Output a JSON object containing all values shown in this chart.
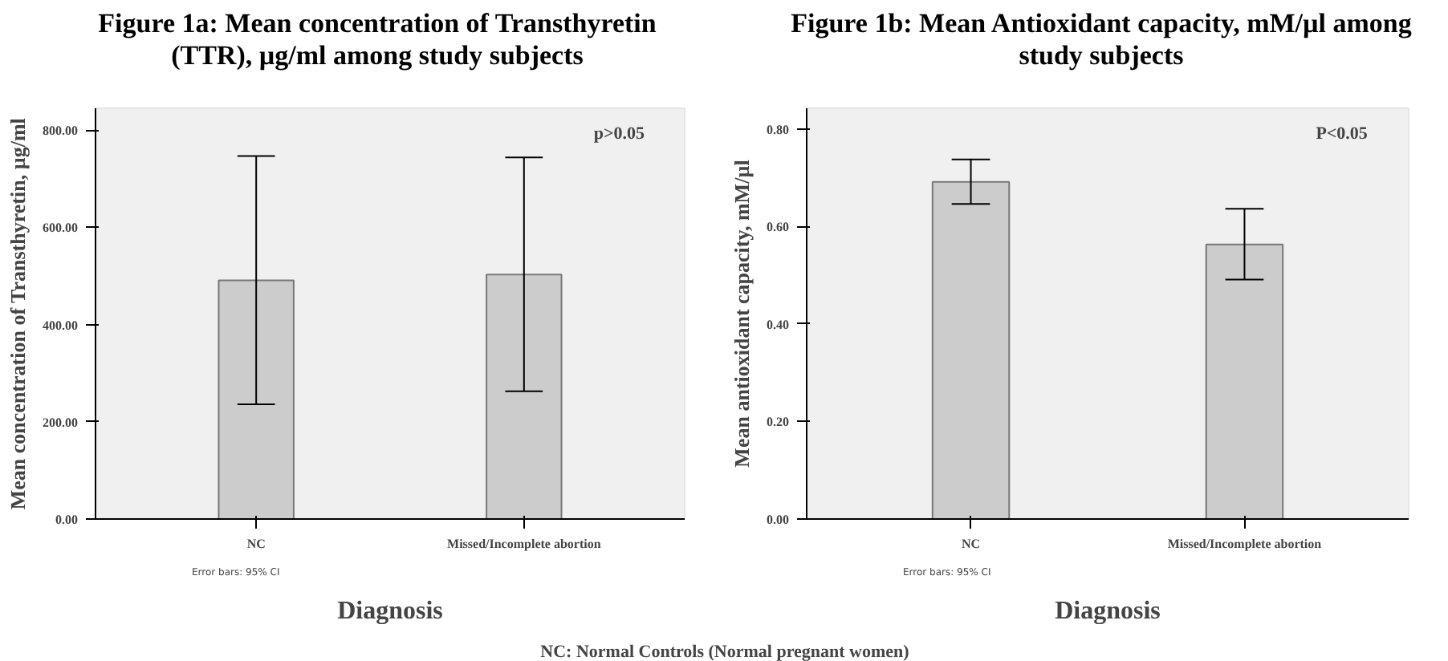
{
  "chart_data": [
    {
      "type": "bar",
      "title": "Figure 1a: Mean concentration of Transthyretin (TTR), µg/ml among study subjects",
      "xlabel": "Diagnosis",
      "ylabel": "Mean concentration of Transthyretin, µg/ml",
      "categories": [
        "NC",
        "Missed/Incomplete abortion"
      ],
      "values": [
        491,
        503
      ],
      "color": "#cccccc",
      "errors": [
        [
          236,
          747
        ],
        [
          263,
          744
        ]
      ],
      "ylim": [
        0,
        845
      ],
      "yticks": [
        {
          "value": 0,
          "label": "0.00"
        },
        {
          "value": 200,
          "label": "200.00"
        },
        {
          "value": 400,
          "label": "400.00"
        },
        {
          "value": 600,
          "label": "600.00"
        },
        {
          "value": 800,
          "label": "800.00"
        }
      ],
      "grid": false,
      "annotations": [
        "p>0.05",
        "Error bars: 95% CI"
      ]
    },
    {
      "type": "bar",
      "title": "Figure 1b: Mean Antioxidant capacity, mM/µl among study subjects",
      "xlabel": "Diagnosis",
      "ylabel": "Mean antioxidant capacity, mM/µl",
      "categories": [
        "NC",
        "Missed/Incomplete abortion"
      ],
      "values": [
        0.691,
        0.563
      ],
      "color": "#cccccc",
      "errors": [
        [
          0.646,
          0.737
        ],
        [
          0.491,
          0.636
        ]
      ],
      "ylim": [
        0,
        0.842
      ],
      "yticks": [
        {
          "value": 0,
          "label": "0.00"
        },
        {
          "value": 0.2,
          "label": "0.20"
        },
        {
          "value": 0.4,
          "label": "0.40"
        },
        {
          "value": 0.6,
          "label": "0.60"
        },
        {
          "value": 0.8,
          "label": "0.80"
        }
      ],
      "grid": false,
      "annotations": [
        "P<0.05",
        "Error bars: 95% CI",
        "NC: Normal Controls (Normal pregnant women)"
      ]
    }
  ]
}
